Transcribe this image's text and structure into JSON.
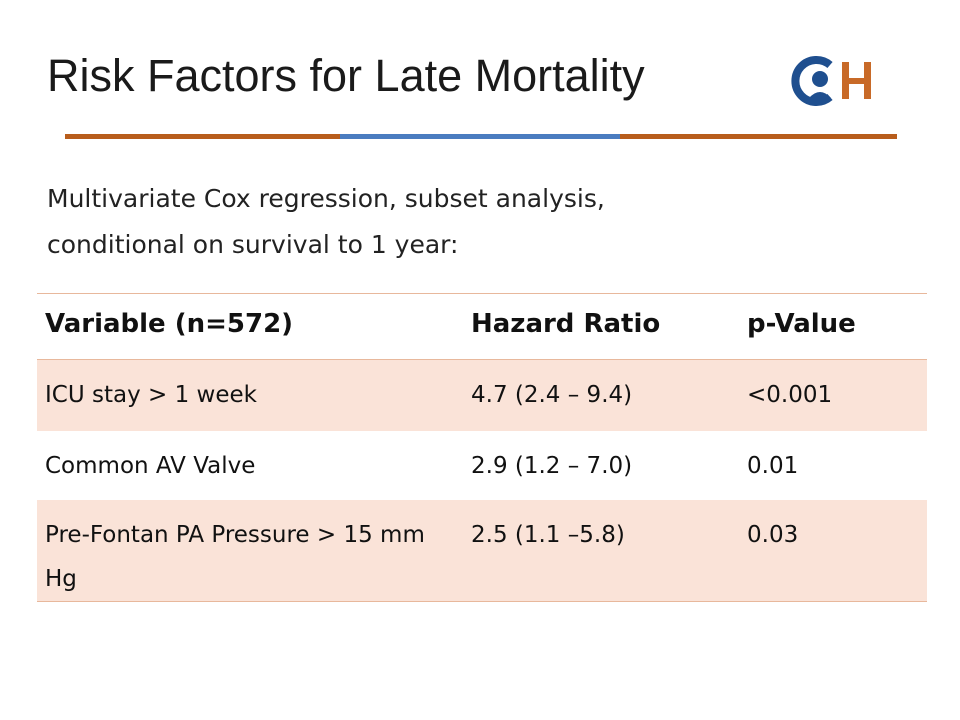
{
  "title": "Risk Factors for Late Mortality",
  "logo": {
    "text": "CH",
    "icon": "child-profile-logo-icon"
  },
  "subtitle": "Multivariate Cox regression, subset analysis, conditional on survival to 1 year:",
  "table": {
    "headers": [
      "Variable (n=572)",
      "Hazard Ratio",
      "p-Value"
    ],
    "rows": [
      [
        "ICU stay > 1 week",
        "4.7 (2.4 – 9.4)",
        "<0.001"
      ],
      [
        "Common AV Valve",
        "2.9 (1.2 – 7.0)",
        "0.01"
      ],
      [
        "Pre-Fontan PA Pressure > 15 mm Hg",
        "2.5 (1.1 –5.8)",
        "0.03"
      ]
    ]
  },
  "colors": {
    "rule_left": "#b85d1c",
    "rule_mid": "#4a7cc0",
    "rule_right": "#b85d1c",
    "row_shade": "#fae3d8",
    "row_plain": "#ffffff",
    "logo_blue": "#1f4f8f",
    "logo_orange": "#c86a28"
  }
}
